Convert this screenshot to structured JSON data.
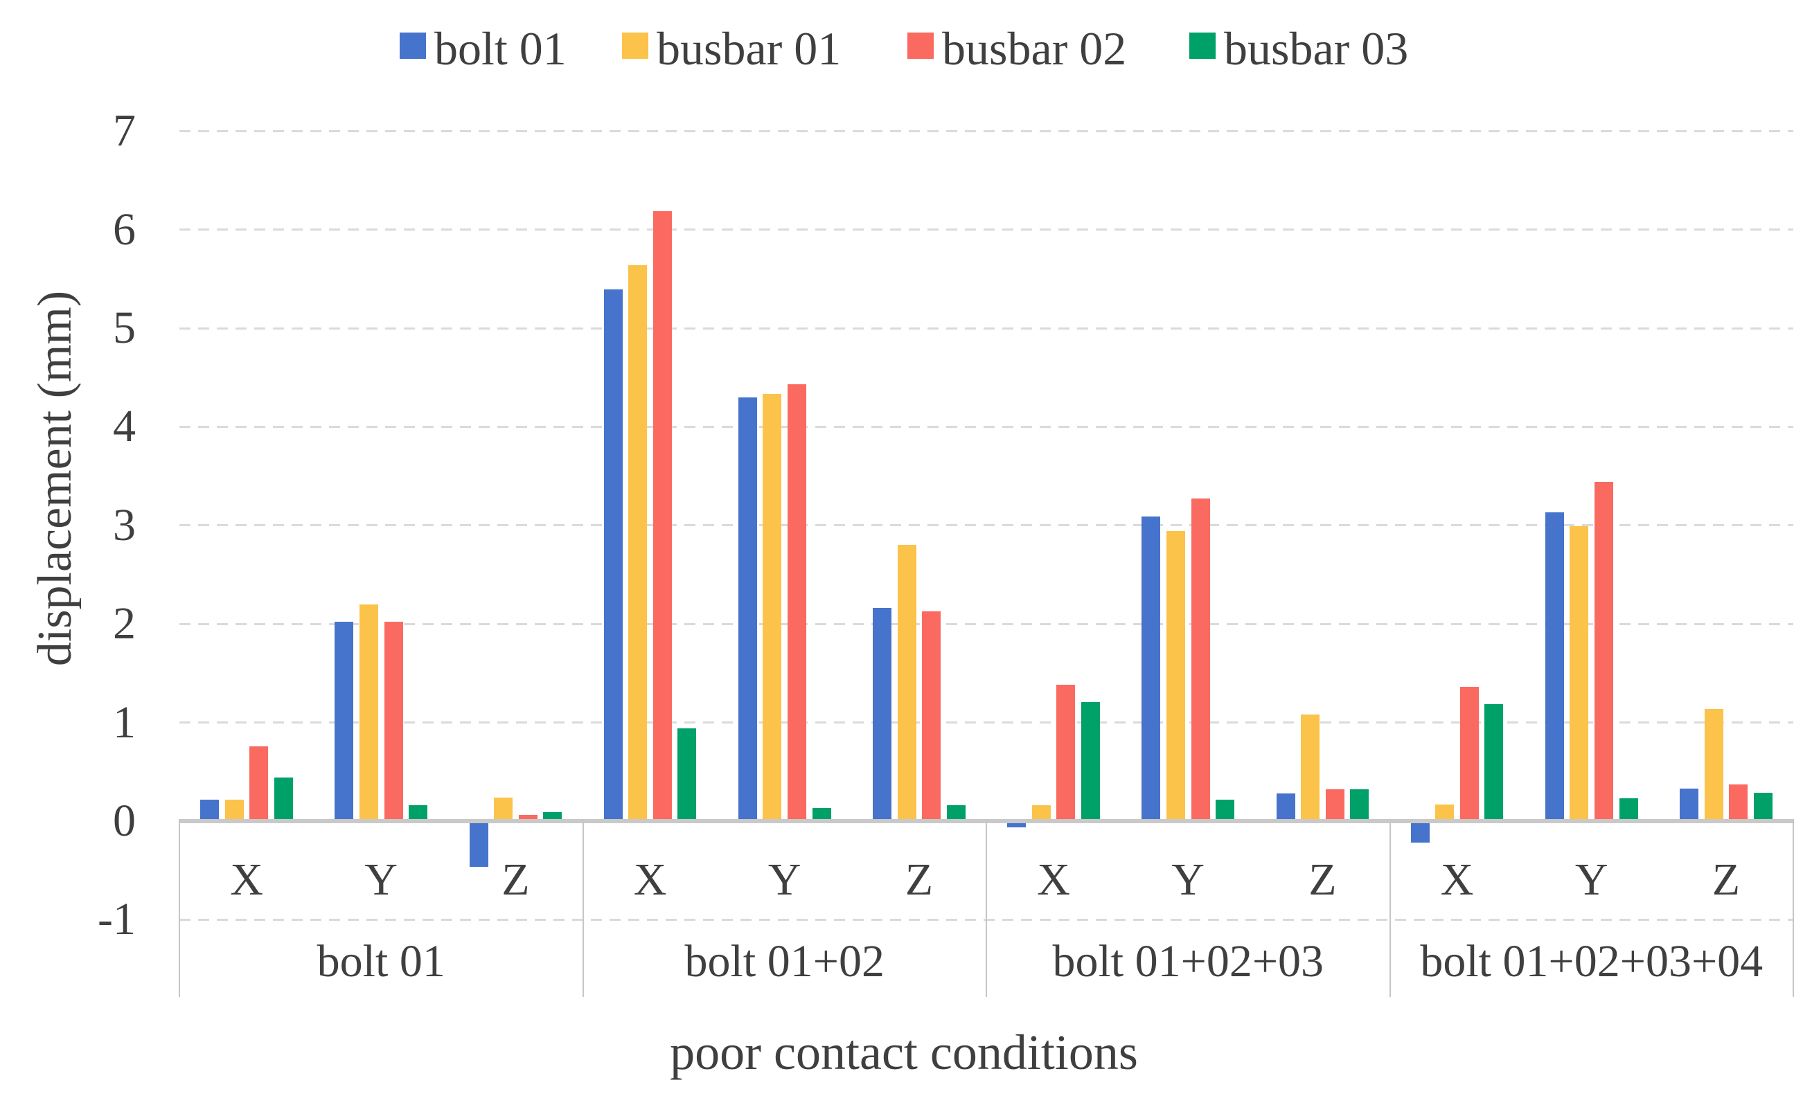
{
  "chart_data": {
    "type": "bar",
    "title": "",
    "xlabel": "poor contact conditions",
    "ylabel": "displacement (mm)",
    "ylim": [
      -1,
      7
    ],
    "grid": true,
    "legend_position": "top",
    "y_ticks": [
      {
        "label": "7",
        "value": 7
      },
      {
        "label": "6",
        "value": 6
      },
      {
        "label": "5",
        "value": 5
      },
      {
        "label": "4",
        "value": 4
      },
      {
        "label": "3",
        "value": 3
      },
      {
        "label": "2",
        "value": 2
      },
      {
        "label": "1",
        "value": 1
      },
      {
        "label": "0",
        "value": 0
      },
      {
        "label": "-1",
        "value": -1
      }
    ],
    "groups": [
      {
        "label": "bolt 01"
      },
      {
        "label": "bolt 01+02"
      },
      {
        "label": "bolt 01+02+03"
      },
      {
        "label": "bolt 01+02+03+04"
      }
    ],
    "subcategories": [
      "X",
      "Y",
      "Z"
    ],
    "series": [
      {
        "name": "bolt 01",
        "color": "#4673cb",
        "values": [
          0.22,
          2.02,
          -0.46,
          5.39,
          4.3,
          2.16,
          -0.06,
          3.09,
          0.28,
          -0.22,
          3.13,
          0.33
        ]
      },
      {
        "name": "busbar 01",
        "color": "#fcc34a",
        "values": [
          0.22,
          2.2,
          0.24,
          5.64,
          4.33,
          2.8,
          0.16,
          2.94,
          1.08,
          0.17,
          2.99,
          1.14
        ]
      },
      {
        "name": "busbar 02",
        "color": "#fa6a60",
        "values": [
          0.76,
          2.02,
          0.06,
          6.19,
          4.43,
          2.13,
          1.38,
          3.27,
          0.32,
          1.36,
          3.44,
          0.37
        ]
      },
      {
        "name": "busbar 03",
        "color": "#00a169",
        "values": [
          0.44,
          0.16,
          0.09,
          0.94,
          0.13,
          0.16,
          1.21,
          0.22,
          0.32,
          1.19,
          0.23,
          0.29
        ]
      }
    ]
  }
}
